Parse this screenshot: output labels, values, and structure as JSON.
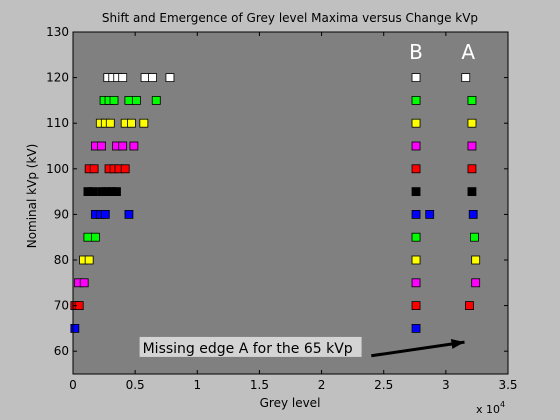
{
  "chart_data": {
    "type": "scatter",
    "title": "Shift and Emergence of Grey level Maxima versus Change kVp",
    "xlabel": "Grey level",
    "ylabel": "Nominal kVp (kV)",
    "x_multiplier": "x 10",
    "x_multiplier_exponent": "4",
    "xlim": [
      0,
      35000
    ],
    "ylim": [
      55,
      130
    ],
    "xticks": [
      "0",
      "0.5",
      "1",
      "1.5",
      "2",
      "2.5",
      "3",
      "3.5"
    ],
    "yticks": [
      "60",
      "70",
      "80",
      "90",
      "100",
      "110",
      "120",
      "130"
    ],
    "plot_background": "#808080",
    "figure_background": "#c0c0c0",
    "grid": false,
    "series": [
      {
        "kvp": 65,
        "color": "#0000ff",
        "x": [
          150,
          27600
        ]
      },
      {
        "kvp": 70,
        "color": "#ff0000",
        "x": [
          150,
          500,
          27600,
          31900
        ]
      },
      {
        "kvp": 75,
        "color": "#ff00ff",
        "x": [
          450,
          900,
          27600,
          32400
        ]
      },
      {
        "kvp": 80,
        "color": "#ffff00",
        "x": [
          850,
          1300,
          27600,
          32400
        ]
      },
      {
        "kvp": 85,
        "color": "#00ff00",
        "x": [
          1200,
          1800,
          27600,
          32300
        ]
      },
      {
        "kvp": 90,
        "color": "#0000ff",
        "x": [
          1800,
          2200,
          2600,
          4500,
          27600,
          28700,
          32200
        ]
      },
      {
        "kvp": 95,
        "color": "#000000",
        "x": [
          1200,
          1600,
          2300,
          2700,
          3100,
          3500,
          27600,
          32100
        ]
      },
      {
        "kvp": 100,
        "color": "#ff0000",
        "x": [
          1300,
          1700,
          2900,
          3300,
          3700,
          4200,
          27600,
          32100
        ]
      },
      {
        "kvp": 105,
        "color": "#ff00ff",
        "x": [
          1800,
          2300,
          3500,
          4000,
          4900,
          27600,
          32100
        ]
      },
      {
        "kvp": 110,
        "color": "#ffff00",
        "x": [
          2200,
          2600,
          3000,
          4200,
          4700,
          5700,
          27600,
          32100
        ]
      },
      {
        "kvp": 115,
        "color": "#00ff00",
        "x": [
          2500,
          2900,
          3300,
          4500,
          5100,
          6700,
          27600,
          32100
        ]
      },
      {
        "kvp": 120,
        "color": "#ffffff",
        "x": [
          2800,
          3200,
          3600,
          4000,
          5800,
          6400,
          7800,
          27600,
          31600
        ]
      }
    ],
    "annotations": [
      {
        "text": "B",
        "x": 27600,
        "y": 126
      },
      {
        "text": "A",
        "x": 31800,
        "y": 126
      },
      {
        "text": "Missing edge A for the 65 kVp",
        "x": 5600,
        "y": 60.5
      }
    ],
    "arrow": {
      "from": [
        24000,
        59
      ],
      "to": [
        31500,
        62
      ]
    }
  }
}
